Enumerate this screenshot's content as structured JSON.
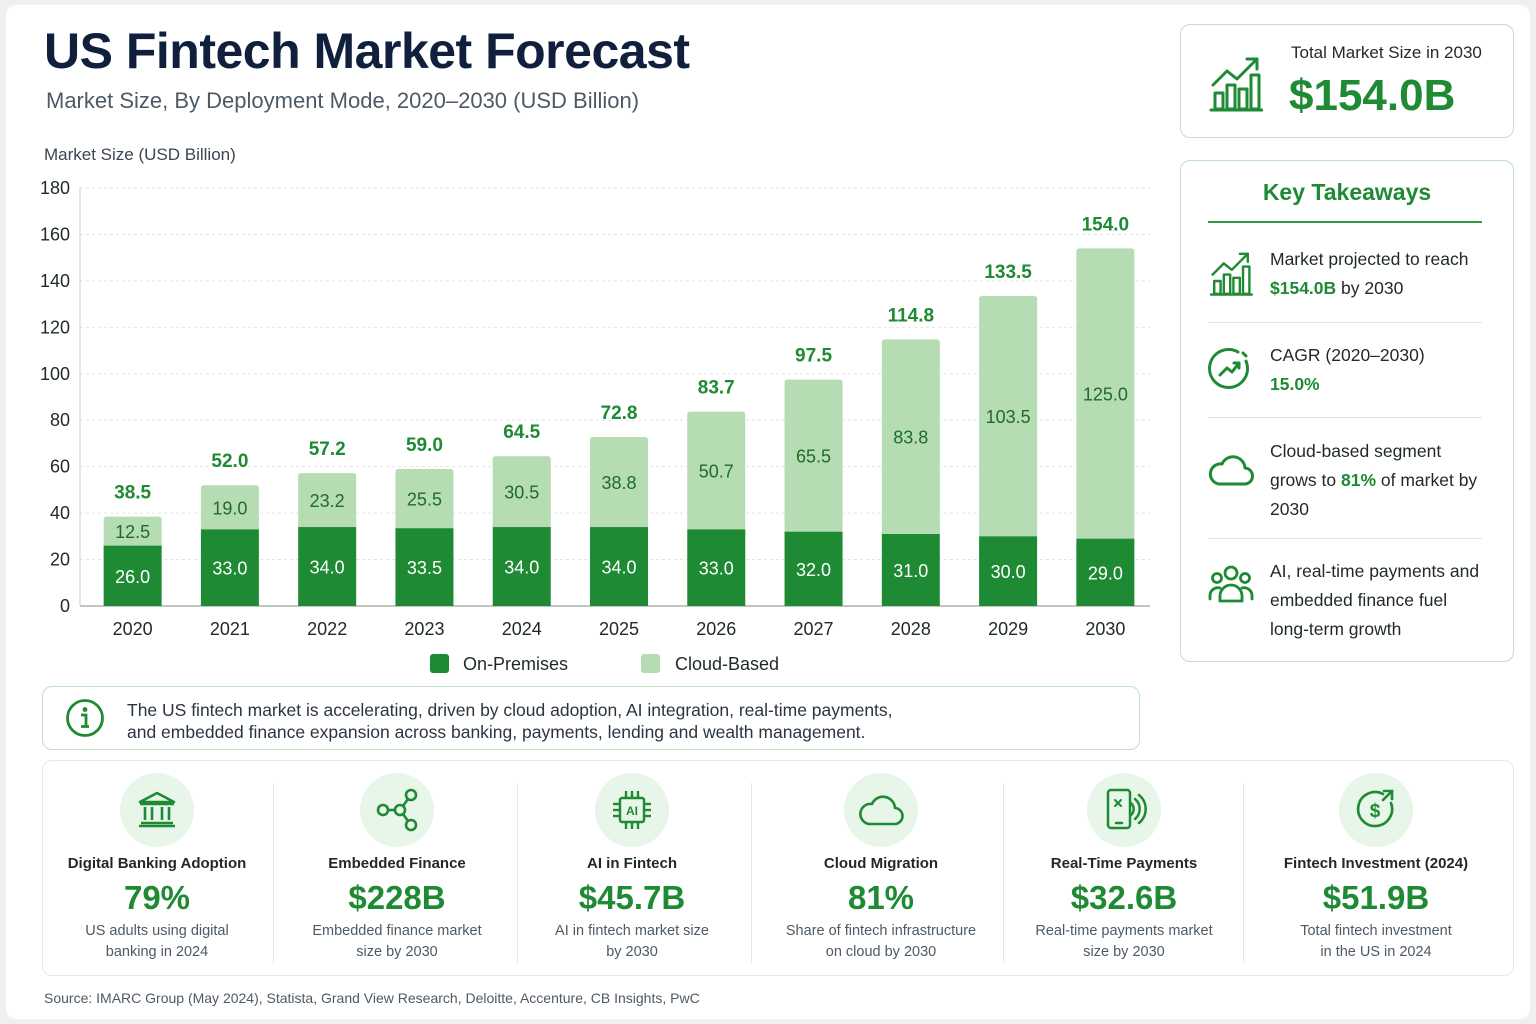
{
  "header": {
    "title": "US Fintech Market Forecast",
    "subtitle": "Market Size, By Deployment Mode, 2020–2030 (USD Billion)"
  },
  "chart_data": {
    "type": "bar",
    "stacked": true,
    "title": "US Fintech Market Forecast",
    "subtitle": "Market Size, By Deployment Mode, 2020–2030 (USD Billion)",
    "ylabel": "Market Size (USD Billion)",
    "xlabel": "",
    "ylim": [
      0,
      180
    ],
    "yticks": [
      0,
      20,
      40,
      60,
      80,
      100,
      120,
      140,
      160,
      180
    ],
    "categories": [
      "2020",
      "2021",
      "2022",
      "2023",
      "2024",
      "2025",
      "2026",
      "2027",
      "2028",
      "2029",
      "2030"
    ],
    "series": [
      {
        "name": "On-Premises",
        "color": "#1e8a33",
        "values": [
          26.0,
          33.0,
          34.0,
          33.5,
          34.0,
          34.0,
          33.0,
          32.0,
          31.0,
          30.0,
          29.0
        ]
      },
      {
        "name": "Cloud-Based",
        "color": "#b5dcb3",
        "values": [
          12.5,
          19.0,
          23.2,
          25.5,
          30.5,
          38.8,
          50.7,
          65.5,
          83.8,
          103.5,
          125.0
        ]
      }
    ],
    "totals": [
      38.5,
      52.0,
      57.2,
      59.0,
      64.5,
      72.8,
      83.7,
      97.5,
      114.8,
      133.5,
      154.0
    ],
    "legend_position": "bottom",
    "grid": true
  },
  "total_card": {
    "label": "Total Market Size in 2030",
    "value": "$154.0B"
  },
  "takeaways": {
    "title": "Key Takeaways",
    "items": [
      {
        "icon": "bar-chart-up-icon",
        "line1": "Market projected to reach",
        "highlight": "$154.0B",
        "rest": " by 2030"
      },
      {
        "icon": "gauge-icon",
        "line1": "CAGR (2020–2030)",
        "highlight": "15.0%",
        "rest": ""
      },
      {
        "icon": "cloud-icon",
        "pre": "Cloud-based segment grows to ",
        "highlight": "81%",
        "rest": " of market by 2030"
      },
      {
        "icon": "people-icon",
        "text": "AI, real-time payments and embedded finance fuel long-term growth"
      }
    ]
  },
  "info": {
    "icon": "info-icon",
    "line1": "The US fintech market is accelerating, driven by cloud adoption, AI integration, real-time payments,",
    "line2": "and embedded finance expansion across banking, payments, lending and wealth management."
  },
  "stats": [
    {
      "icon": "bank-icon",
      "title": "Digital Banking Adoption",
      "value": "79%",
      "desc1": "US adults using digital",
      "desc2": "banking in 2024"
    },
    {
      "icon": "network-icon",
      "title": "Embedded Finance",
      "value": "$228B",
      "desc1": "Embedded finance market",
      "desc2": "size by 2030"
    },
    {
      "icon": "ai-chip-icon",
      "title": "AI in Fintech",
      "value": "$45.7B",
      "desc1": "AI in fintech market size",
      "desc2": "by 2030"
    },
    {
      "icon": "cloud-icon",
      "title": "Cloud Migration",
      "value": "81%",
      "desc1": "Share of fintech infrastructure",
      "desc2": "on cloud by 2030"
    },
    {
      "icon": "contactless-phone-icon",
      "title": "Real-Time Payments",
      "value": "$32.6B",
      "desc1": "Real-time payments market",
      "desc2": "size by 2030"
    },
    {
      "icon": "dollar-growth-icon",
      "title": "Fintech Investment (2024)",
      "value": "$51.9B",
      "desc1": "Total fintech investment",
      "desc2": "in the US in 2024"
    }
  ],
  "source": "Source: IMARC Group (May 2024), Statista, Grand View Research, Deloitte, Accenture, CB Insights, PwC",
  "colors": {
    "accent": "#1e8a33",
    "light": "#b5dcb3",
    "title": "#0f1f3c"
  }
}
